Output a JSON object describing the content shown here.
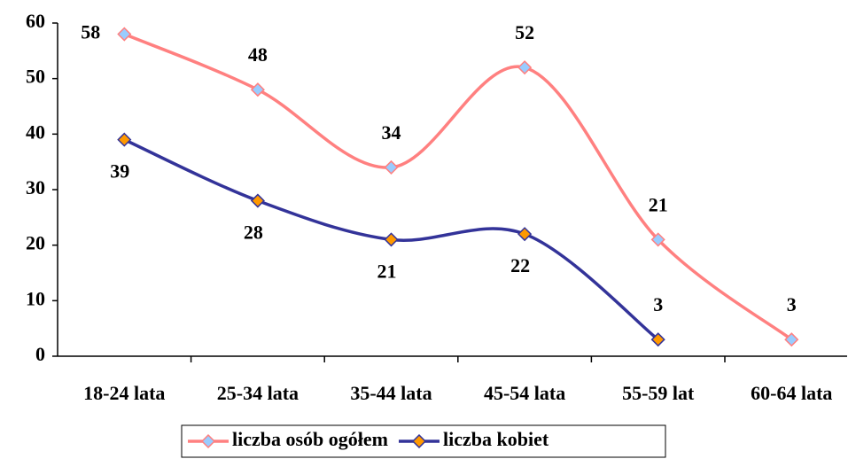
{
  "chart_data": {
    "type": "line",
    "categories": [
      "18-24 lata",
      "25-34 lata",
      "35-44 lata",
      "45-54 lata",
      "55-59 lat",
      "60-64 lata"
    ],
    "series": [
      {
        "name": "liczba osób ogółem",
        "color": "#ff8080",
        "marker_color": "#99ccff",
        "values": [
          58,
          48,
          34,
          52,
          21,
          3
        ]
      },
      {
        "name": "liczba kobiet",
        "color": "#333399",
        "marker_color": "#ff9900",
        "values": [
          39,
          28,
          21,
          22,
          3,
          null
        ]
      }
    ],
    "ylim": [
      0,
      60
    ],
    "yticks": [
      0,
      10,
      20,
      30,
      40,
      50,
      60
    ],
    "smooth": true,
    "legend": "bottom"
  }
}
